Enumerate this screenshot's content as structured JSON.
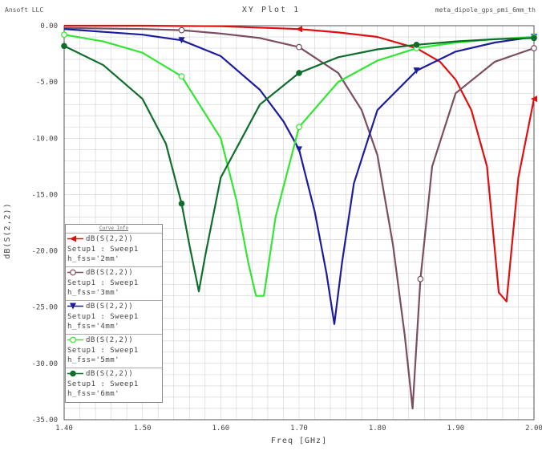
{
  "header": {
    "left_text": "Ansoft LLC",
    "right_text": "meta_dipole_gps_pmi_6mm_th"
  },
  "chart_data": {
    "type": "line",
    "title": "XY Plot 1",
    "xlabel": "Freq [GHz]",
    "ylabel": "dB(S(2,2))",
    "xlim": [
      1.4,
      2.0
    ],
    "ylim": [
      -35,
      0
    ],
    "x_ticks": [
      "1.40",
      "1.50",
      "1.60",
      "1.70",
      "1.80",
      "1.90",
      "2.00"
    ],
    "y_ticks": [
      "0.00",
      "-5.00",
      "-10.00",
      "-15.00",
      "-20.00",
      "-25.00",
      "-30.00",
      "-35.00"
    ],
    "grid": true,
    "legend_position": "bottom-left",
    "legend_title": "Curve Info",
    "series": [
      {
        "name": "h_fss='2mm'",
        "legend_lines": [
          "dB(S(2,2))",
          "Setup1 : Sweep1",
          "h_fss='2mm'"
        ],
        "color": "#e01010",
        "marker": "triangle-left",
        "x": [
          1.4,
          1.5,
          1.6,
          1.7,
          1.75,
          1.8,
          1.85,
          1.88,
          1.9,
          1.92,
          1.94,
          1.955,
          1.965,
          1.98,
          2.0
        ],
        "y": [
          0.0,
          0.0,
          -0.05,
          -0.3,
          -0.6,
          -1.0,
          -2.0,
          -3.2,
          -4.8,
          -7.5,
          -12.5,
          -23.7,
          -24.5,
          -13.5,
          -6.5
        ],
        "marker_x": [
          1.7,
          2.0
        ],
        "marker_y": [
          -0.3,
          -6.5
        ]
      },
      {
        "name": "h_fss='3mm'",
        "legend_lines": [
          "dB(S(2,2))",
          "Setup1 : Sweep1",
          "h_fss='3mm'"
        ],
        "color": "#7b4e62",
        "marker": "circle-open",
        "x": [
          1.4,
          1.5,
          1.55,
          1.6,
          1.65,
          1.7,
          1.75,
          1.78,
          1.8,
          1.82,
          1.835,
          1.845,
          1.855,
          1.87,
          1.9,
          1.95,
          2.0
        ],
        "y": [
          -0.2,
          -0.3,
          -0.4,
          -0.7,
          -1.1,
          -1.9,
          -4.2,
          -7.5,
          -11.5,
          -19.5,
          -27.5,
          -34.0,
          -22.5,
          -12.5,
          -6.0,
          -3.2,
          -2.0
        ],
        "marker_x": [
          1.55,
          1.7,
          1.855,
          2.0
        ],
        "marker_y": [
          -0.4,
          -1.9,
          -22.5,
          -2.0
        ]
      },
      {
        "name": "h_fss='4mm'",
        "legend_lines": [
          "dB(S(2,2))",
          "Setup1 : Sweep1",
          "h_fss='4mm'"
        ],
        "color": "#1c1c9e",
        "marker": "triangle-down",
        "x": [
          1.4,
          1.5,
          1.55,
          1.6,
          1.65,
          1.68,
          1.7,
          1.72,
          1.735,
          1.745,
          1.755,
          1.77,
          1.8,
          1.85,
          1.9,
          1.95,
          2.0
        ],
        "y": [
          -0.3,
          -0.8,
          -1.3,
          -2.7,
          -5.7,
          -8.5,
          -11.0,
          -16.5,
          -22.0,
          -26.5,
          -21.0,
          -14.0,
          -7.5,
          -4.0,
          -2.3,
          -1.5,
          -1.0
        ],
        "marker_x": [
          1.55,
          1.7,
          1.85,
          2.0
        ],
        "marker_y": [
          -1.3,
          -11.0,
          -4.0,
          -1.0
        ]
      },
      {
        "name": "h_fss='5mm'",
        "legend_lines": [
          "dB(S(2,2))",
          "Setup1 : Sweep1",
          "h_fss='5mm'"
        ],
        "color": "#33e633",
        "marker": "circle-open",
        "x": [
          1.4,
          1.45,
          1.5,
          1.55,
          1.6,
          1.62,
          1.635,
          1.645,
          1.655,
          1.67,
          1.7,
          1.75,
          1.8,
          1.85,
          1.9,
          1.95,
          2.0
        ],
        "y": [
          -0.8,
          -1.4,
          -2.4,
          -4.5,
          -10.0,
          -15.5,
          -21.0,
          -24.0,
          -24.0,
          -17.0,
          -9.0,
          -5.0,
          -3.1,
          -2.0,
          -1.5,
          -1.2,
          -1.0
        ],
        "marker_x": [
          1.4,
          1.55,
          1.7,
          1.85,
          2.0
        ],
        "marker_y": [
          -0.8,
          -4.5,
          -9.0,
          -2.0,
          -1.0
        ]
      },
      {
        "name": "h_fss='6mm'",
        "legend_lines": [
          "dB(S(2,2))",
          "Setup1 : Sweep1",
          "h_fss='6mm'"
        ],
        "color": "#0f6e2c",
        "marker": "circle-filled",
        "x": [
          1.4,
          1.45,
          1.5,
          1.53,
          1.55,
          1.56,
          1.572,
          1.58,
          1.6,
          1.65,
          1.7,
          1.75,
          1.8,
          1.85,
          1.9,
          1.95,
          2.0
        ],
        "y": [
          -1.8,
          -3.5,
          -6.5,
          -10.5,
          -15.8,
          -19.5,
          -23.6,
          -20.5,
          -13.5,
          -7.0,
          -4.2,
          -2.8,
          -2.1,
          -1.7,
          -1.4,
          -1.2,
          -1.1
        ],
        "marker_x": [
          1.4,
          1.55,
          1.7,
          1.85,
          2.0
        ],
        "marker_y": [
          -1.8,
          -15.8,
          -4.2,
          -1.7,
          -1.1
        ]
      }
    ]
  }
}
